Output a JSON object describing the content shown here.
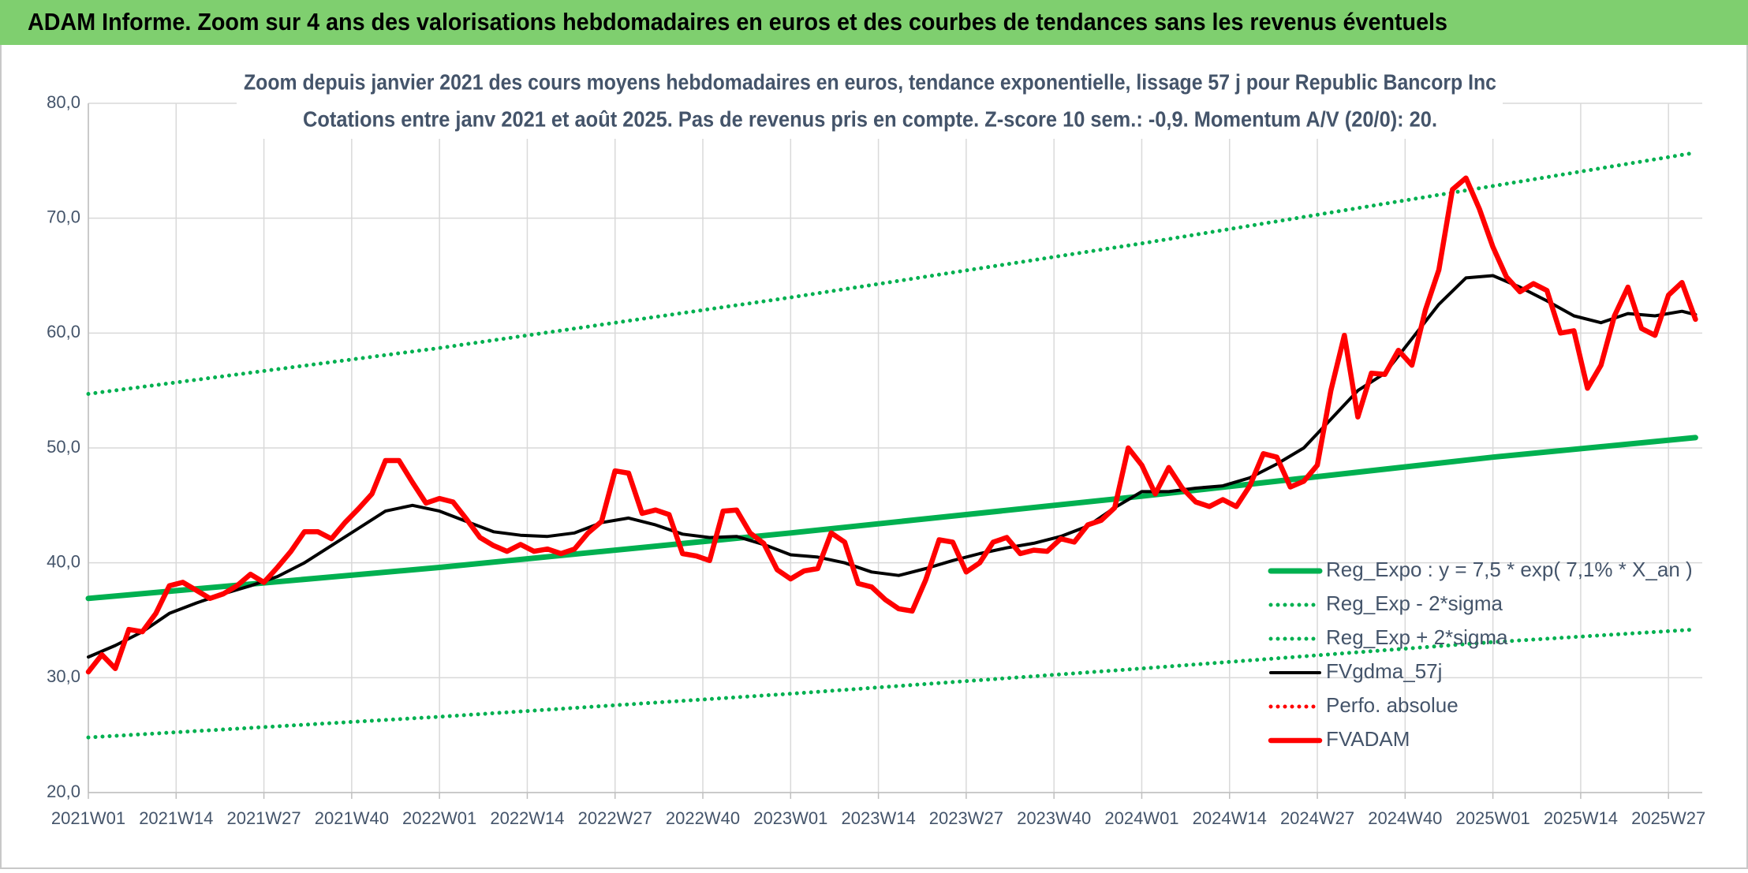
{
  "chart_data": {
    "type": "line",
    "title": "ADAM Informe. Zoom sur 4 ans des valorisations hebdomadaires en euros et des courbes de tendances sans les revenus éventuels",
    "subtitle": [
      "Zoom depuis janvier 2021 des cours moyens hebdomadaires en euros, tendance exponentielle, lissage 57 j pour Republic Bancorp Inc",
      "Cotations entre janv 2021 et août 2025. Pas de revenus pris en compte. Z-score 10 sem.: -0,9. Momentum A/V (20/0): 20."
    ],
    "xlim": [
      0,
      239
    ],
    "xticks": [
      {
        "value": 0,
        "label": "2021W01"
      },
      {
        "value": 13,
        "label": "2021W14"
      },
      {
        "value": 26,
        "label": "2021W27"
      },
      {
        "value": 39,
        "label": "2021W40"
      },
      {
        "value": 52,
        "label": "2022W01"
      },
      {
        "value": 65,
        "label": "2022W14"
      },
      {
        "value": 78,
        "label": "2022W27"
      },
      {
        "value": 91,
        "label": "2022W40"
      },
      {
        "value": 104,
        "label": "2023W01"
      },
      {
        "value": 117,
        "label": "2023W14"
      },
      {
        "value": 130,
        "label": "2023W27"
      },
      {
        "value": 143,
        "label": "2023W40"
      },
      {
        "value": 156,
        "label": "2024W01"
      },
      {
        "value": 169,
        "label": "2024W14"
      },
      {
        "value": 182,
        "label": "2024W27"
      },
      {
        "value": 195,
        "label": "2024W40"
      },
      {
        "value": 208,
        "label": "2025W01"
      },
      {
        "value": 221,
        "label": "2025W14"
      },
      {
        "value": 234,
        "label": "2025W27"
      }
    ],
    "ylim": [
      20,
      80
    ],
    "yticks": [
      {
        "value": 20,
        "label": "20,0"
      },
      {
        "value": 30,
        "label": "30,0"
      },
      {
        "value": 40,
        "label": "40,0"
      },
      {
        "value": 50,
        "label": "50,0"
      },
      {
        "value": 60,
        "label": "60,0"
      },
      {
        "value": 70,
        "label": "70,0"
      },
      {
        "value": 80,
        "label": "80,0"
      }
    ],
    "grid": true,
    "legend": "lower right",
    "series": [
      {
        "name": "Reg_Expo : y = 7,5 * exp( 7,1% *  X_an )",
        "color": "#00b050",
        "style": "solid",
        "x": [
          0,
          52,
          104,
          156,
          208,
          238
        ],
        "values": [
          36.9,
          39.6,
          42.6,
          45.8,
          49.2,
          50.9
        ]
      },
      {
        "name": "Reg_Exp - 2*sigma",
        "color": "#00b050",
        "style": "dotted",
        "x": [
          0,
          52,
          104,
          156,
          208,
          238
        ],
        "values": [
          24.8,
          26.6,
          28.6,
          30.8,
          33.1,
          34.2
        ]
      },
      {
        "name": "Reg_Exp + 2*sigma",
        "color": "#00b050",
        "style": "dotted",
        "x": [
          0,
          52,
          104,
          156,
          208,
          238
        ],
        "values": [
          54.7,
          58.7,
          63.1,
          67.8,
          72.8,
          75.7
        ]
      },
      {
        "name": "FVgdma_57j",
        "color": "#000000",
        "style": "solid",
        "x": [
          0,
          4,
          8,
          12,
          16,
          20,
          24,
          28,
          32,
          36,
          40,
          44,
          48,
          52,
          56,
          60,
          64,
          68,
          72,
          76,
          80,
          84,
          88,
          92,
          96,
          100,
          104,
          108,
          112,
          116,
          120,
          124,
          128,
          132,
          136,
          140,
          144,
          148,
          152,
          156,
          160,
          164,
          168,
          172,
          176,
          180,
          184,
          188,
          192,
          196,
          200,
          204,
          208,
          212,
          216,
          220,
          224,
          228,
          232,
          236,
          238
        ],
        "values": [
          31.8,
          32.8,
          34.0,
          35.6,
          36.5,
          37.3,
          38.0,
          38.8,
          40.0,
          41.5,
          43.0,
          44.5,
          45.0,
          44.5,
          43.6,
          42.7,
          42.4,
          42.3,
          42.6,
          43.5,
          43.9,
          43.3,
          42.5,
          42.2,
          42.3,
          41.6,
          40.7,
          40.5,
          40.0,
          39.2,
          38.9,
          39.5,
          40.2,
          40.8,
          41.3,
          41.7,
          42.3,
          43.2,
          44.8,
          46.2,
          46.2,
          46.5,
          46.7,
          47.4,
          48.6,
          50.0,
          52.5,
          55.0,
          56.5,
          59.5,
          62.5,
          64.8,
          65.0,
          64.0,
          62.8,
          61.5,
          60.9,
          61.7,
          61.5,
          61.9,
          61.6
        ]
      },
      {
        "name": "Perfo. absolue",
        "color": "#ff0000",
        "style": "dotted",
        "x": [],
        "values": []
      },
      {
        "name": "FVADAM",
        "color": "#ff0000",
        "style": "solid",
        "x": [
          0,
          2,
          4,
          6,
          8,
          10,
          12,
          14,
          16,
          18,
          20,
          22,
          24,
          26,
          28,
          30,
          32,
          34,
          36,
          38,
          40,
          42,
          44,
          46,
          48,
          50,
          52,
          54,
          56,
          58,
          60,
          62,
          64,
          66,
          68,
          70,
          72,
          74,
          76,
          78,
          80,
          82,
          84,
          86,
          88,
          90,
          92,
          94,
          96,
          98,
          100,
          102,
          104,
          106,
          108,
          110,
          112,
          114,
          116,
          118,
          120,
          122,
          124,
          126,
          128,
          130,
          132,
          134,
          136,
          138,
          140,
          142,
          144,
          146,
          148,
          150,
          152,
          154,
          156,
          158,
          160,
          162,
          164,
          166,
          168,
          170,
          172,
          174,
          176,
          178,
          180,
          182,
          184,
          186,
          188,
          190,
          192,
          194,
          196,
          198,
          200,
          202,
          204,
          206,
          208,
          210,
          212,
          214,
          216,
          218,
          220,
          222,
          224,
          226,
          228,
          230,
          232,
          234,
          236,
          238
        ],
        "values": [
          30.5,
          32.0,
          30.8,
          34.2,
          34.0,
          35.6,
          38.0,
          38.3,
          37.6,
          36.9,
          37.3,
          38.0,
          39.0,
          38.3,
          39.6,
          41.0,
          42.7,
          42.7,
          42.1,
          43.5,
          44.7,
          46.0,
          48.9,
          48.9,
          47.0,
          45.2,
          45.6,
          45.3,
          43.8,
          42.2,
          41.5,
          41.0,
          41.6,
          41.0,
          41.2,
          40.8,
          41.2,
          42.6,
          43.6,
          48.0,
          47.8,
          44.3,
          44.6,
          44.2,
          40.8,
          40.6,
          40.2,
          44.5,
          44.6,
          42.6,
          41.7,
          39.4,
          38.6,
          39.3,
          39.5,
          42.6,
          41.8,
          38.2,
          37.9,
          36.8,
          36.0,
          35.8,
          38.5,
          42.0,
          41.8,
          39.2,
          40.0,
          41.8,
          42.2,
          40.8,
          41.1,
          41.0,
          42.1,
          41.8,
          43.3,
          43.7,
          44.8,
          50.0,
          48.5,
          46.0,
          48.3,
          46.5,
          45.3,
          44.9,
          45.5,
          44.9,
          46.7,
          49.5,
          49.2,
          46.6,
          47.1,
          48.5,
          55.0,
          59.8,
          52.7,
          56.5,
          56.4,
          58.5,
          57.2,
          62.0,
          65.5,
          72.5,
          73.5,
          70.8,
          67.5,
          64.9,
          63.6,
          64.3,
          63.7,
          60.0,
          60.2,
          55.2,
          57.2,
          61.5,
          64.0,
          60.4,
          59.8,
          63.3,
          64.4,
          61.2
        ]
      }
    ]
  }
}
